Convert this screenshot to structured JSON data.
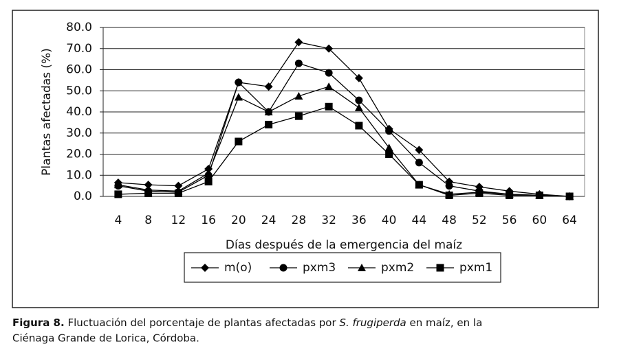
{
  "chart_data": {
    "type": "line",
    "xlabel": "Días después de la emergencia del maíz",
    "ylabel": "Plantas afectadas (%)",
    "categories": [
      4,
      8,
      12,
      16,
      20,
      24,
      28,
      32,
      36,
      40,
      44,
      48,
      52,
      56,
      60,
      64
    ],
    "ylim": [
      0,
      80
    ],
    "yticks": [
      {
        "value": 0,
        "label": "0.0"
      },
      {
        "value": 10,
        "label": "10.0"
      },
      {
        "value": 20,
        "label": "20.0"
      },
      {
        "value": 30,
        "label": "30.0"
      },
      {
        "value": 40,
        "label": "40.0"
      },
      {
        "value": 50,
        "label": "50.0"
      },
      {
        "value": 60,
        "label": "60.0"
      },
      {
        "value": 70,
        "label": "70.0"
      },
      {
        "value": 80,
        "label": "80.0"
      }
    ],
    "grid": true,
    "series": [
      {
        "name": "m(o)",
        "color": "#000000",
        "marker": "diamond",
        "values": [
          6.5,
          5.5,
          5,
          13,
          54,
          52,
          73,
          70,
          56,
          32,
          22,
          7,
          4.5,
          2.5,
          1,
          0
        ]
      },
      {
        "name": "pxm3",
        "color": "#000000",
        "marker": "circle",
        "values": [
          5,
          2.5,
          2,
          10,
          54,
          40,
          63,
          58.5,
          45.5,
          31,
          16,
          5,
          2.5,
          1,
          0.5,
          0
        ]
      },
      {
        "name": "pxm2",
        "color": "#000000",
        "marker": "triangle",
        "values": [
          5.5,
          3,
          2.5,
          11,
          47,
          40,
          47.5,
          52,
          42,
          23,
          5.5,
          1,
          2,
          1,
          0.5,
          0
        ]
      },
      {
        "name": "pxm1",
        "color": "#000000",
        "marker": "square",
        "values": [
          1,
          1.5,
          1.5,
          7,
          26,
          34,
          38,
          42.5,
          33.5,
          20,
          5.5,
          0.5,
          1.5,
          0.5,
          0.5,
          0
        ]
      }
    ]
  },
  "caption": {
    "label": "Figura 8.",
    "text_before": " Fluctuación del porcentaje de plantas afectadas por ",
    "species": "S. frugiperda",
    "text_after": " en maíz, en la",
    "line2": "Ciénaga Grande de Lorica, Córdoba."
  }
}
